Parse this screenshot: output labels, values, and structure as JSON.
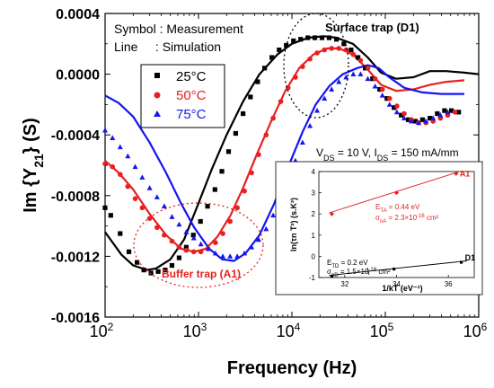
{
  "chart_data": [
    {
      "type": "scatter",
      "xlabel": "Frequency (Hz)",
      "ylabel": "Im {Y21} (S)",
      "x_scale": "log",
      "xlim": [
        100,
        1000000
      ],
      "ylim": [
        -0.0016,
        0.0004
      ],
      "x_ticks": [
        {
          "v": 100,
          "base": "10",
          "exp": "2"
        },
        {
          "v": 1000,
          "base": "10",
          "exp": "3"
        },
        {
          "v": 10000,
          "base": "10",
          "exp": "4"
        },
        {
          "v": 100000,
          "base": "10",
          "exp": "5"
        },
        {
          "v": 1000000,
          "base": "10",
          "exp": "6"
        }
      ],
      "y_ticks": [
        {
          "v": 0.0004,
          "label": "0.0004"
        },
        {
          "v": 0.0,
          "label": "0.0000"
        },
        {
          "v": -0.0004,
          "label": "-0.0004"
        },
        {
          "v": -0.0008,
          "label": "-0.0008"
        },
        {
          "v": -0.0012,
          "label": "-0.0012"
        },
        {
          "v": -0.0016,
          "label": "-0.0016"
        }
      ],
      "legend_text": {
        "line1": "Symbol : Measurement",
        "line2": "Line     : Simulation"
      },
      "series": [
        {
          "name": "25°C",
          "color": "#000000",
          "marker": "square",
          "measurement": [
            [
              100,
              -0.00088
            ],
            [
              115,
              -0.00093
            ],
            [
              145,
              -0.00105
            ],
            [
              180,
              -0.00117
            ],
            [
              220,
              -0.00124
            ],
            [
              260,
              -0.00129
            ],
            [
              310,
              -0.00131
            ],
            [
              370,
              -0.0013
            ],
            [
              440,
              -0.00129
            ],
            [
              520,
              -0.00126
            ],
            [
              620,
              -0.00121
            ],
            [
              740,
              -0.00114
            ],
            [
              880,
              -0.00106
            ],
            [
              1050,
              -0.00097
            ],
            [
              1250,
              -0.00087
            ],
            [
              1500,
              -0.00076
            ],
            [
              1780,
              -0.00064
            ],
            [
              2100,
              -0.00051
            ],
            [
              2500,
              -0.00039
            ],
            [
              3000,
              -0.00026
            ],
            [
              3600,
              -0.00015
            ],
            [
              4300,
              -5e-05
            ],
            [
              5100,
              4e-05
            ],
            [
              6100,
              0.00011
            ],
            [
              7300,
              0.00016
            ],
            [
              8700,
              0.00019
            ],
            [
              10400,
              0.00022
            ],
            [
              12400,
              0.00023
            ],
            [
              14800,
              0.00024
            ],
            [
              17600,
              0.00024
            ],
            [
              21000,
              0.00024
            ],
            [
              25000,
              0.00024
            ],
            [
              30000,
              0.00023
            ],
            [
              36000,
              0.0002
            ],
            [
              43000,
              0.00016
            ],
            [
              51000,
              0.00011
            ],
            [
              61000,
              4e-05
            ],
            [
              73000,
              -3e-05
            ],
            [
              87000,
              -0.0001
            ],
            [
              104000,
              -0.00016
            ],
            [
              124000,
              -0.00022
            ],
            [
              148000,
              -0.00027
            ],
            [
              176000,
              -0.0003
            ],
            [
              210000,
              -0.00031
            ],
            [
              250000,
              -0.0003
            ],
            [
              300000,
              -0.00029
            ],
            [
              360000,
              -0.00026
            ],
            [
              430000,
              -0.00024
            ],
            [
              510000,
              -0.00024
            ],
            [
              610000,
              -0.00025
            ]
          ],
          "simulation": [
            [
              100,
              -0.00104
            ],
            [
              150,
              -0.00119
            ],
            [
              200,
              -0.00126
            ],
            [
              280,
              -0.00129
            ],
            [
              350,
              -0.00128
            ],
            [
              500,
              -0.00122
            ],
            [
              700,
              -0.00109
            ],
            [
              1000,
              -0.00085
            ],
            [
              1400,
              -0.00062
            ],
            [
              2000,
              -0.0004
            ],
            [
              3000,
              -0.00018
            ],
            [
              4500,
              0.0
            ],
            [
              7000,
              0.00013
            ],
            [
              10000,
              0.0002
            ],
            [
              15000,
              0.00024
            ],
            [
              22000,
              0.00025
            ],
            [
              30000,
              0.00024
            ],
            [
              45000,
              0.0002
            ],
            [
              65000,
              0.00011
            ],
            [
              90000,
              1e-05
            ],
            [
              130000,
              -3e-05
            ],
            [
              200000,
              -2e-05
            ],
            [
              300000,
              2e-05
            ],
            [
              450000,
              2e-05
            ],
            [
              700000,
              1e-05
            ],
            [
              1000000,
              0.0
            ]
          ]
        },
        {
          "name": "50°C",
          "color": "#e8201f",
          "marker": "circle",
          "measurement": [
            [
              100,
              -0.00059
            ],
            [
              120,
              -0.00061
            ],
            [
              145,
              -0.00066
            ],
            [
              175,
              -0.00074
            ],
            [
              210,
              -0.00082
            ],
            [
              250,
              -0.00088
            ],
            [
              300,
              -0.00095
            ],
            [
              360,
              -0.00101
            ],
            [
              430,
              -0.00106
            ],
            [
              520,
              -0.0011
            ],
            [
              620,
              -0.00114
            ],
            [
              740,
              -0.00116
            ],
            [
              890,
              -0.00117
            ],
            [
              1060,
              -0.00117
            ],
            [
              1270,
              -0.00115
            ],
            [
              1520,
              -0.00111
            ],
            [
              1820,
              -0.00105
            ],
            [
              2180,
              -0.00097
            ],
            [
              2600,
              -0.00088
            ],
            [
              3100,
              -0.00077
            ],
            [
              3700,
              -0.00065
            ],
            [
              4400,
              -0.00053
            ],
            [
              5300,
              -0.0004
            ],
            [
              6300,
              -0.00029
            ],
            [
              7600,
              -0.00018
            ],
            [
              9100,
              -9e-05
            ],
            [
              10900,
              -2e-05
            ],
            [
              13000,
              5e-05
            ],
            [
              15600,
              0.0001
            ],
            [
              18600,
              0.00014
            ],
            [
              22300,
              0.00016
            ],
            [
              26600,
              0.00017
            ],
            [
              31800,
              0.00017
            ],
            [
              38000,
              0.00016
            ],
            [
              45400,
              0.00013
            ],
            [
              54300,
              9e-05
            ],
            [
              65000,
              4e-05
            ],
            [
              77700,
              -3e-05
            ],
            [
              93000,
              -0.0001
            ],
            [
              111000,
              -0.00016
            ],
            [
              133000,
              -0.00021
            ],
            [
              159000,
              -0.00026
            ],
            [
              190000,
              -0.0003
            ],
            [
              227000,
              -0.00032
            ],
            [
              272000,
              -0.00032
            ],
            [
              325000,
              -0.00031
            ],
            [
              389000,
              -0.00029
            ],
            [
              465000,
              -0.00027
            ],
            [
              556000,
              -0.00025
            ]
          ],
          "simulation": [
            [
              100,
              -0.00057
            ],
            [
              140,
              -0.00065
            ],
            [
              200,
              -0.00076
            ],
            [
              300,
              -0.00092
            ],
            [
              450,
              -0.00106
            ],
            [
              650,
              -0.00115
            ],
            [
              900,
              -0.00117
            ],
            [
              1200,
              -0.00115
            ],
            [
              1600,
              -0.00107
            ],
            [
              2200,
              -0.00093
            ],
            [
              3000,
              -0.00075
            ],
            [
              4200,
              -0.00053
            ],
            [
              6000,
              -0.00031
            ],
            [
              8500,
              -0.00011
            ],
            [
              12000,
              4e-05
            ],
            [
              17000,
              0.00013
            ],
            [
              24000,
              0.00017
            ],
            [
              32000,
              0.00017
            ],
            [
              45000,
              0.00013
            ],
            [
              65000,
              3e-05
            ],
            [
              90000,
              -7e-05
            ],
            [
              130000,
              -0.00011
            ],
            [
              200000,
              -0.0001
            ],
            [
              300000,
              -7e-05
            ],
            [
              450000,
              -5e-05
            ],
            [
              700000,
              -4e-05
            ]
          ]
        },
        {
          "name": "75°C",
          "color": "#1515f0",
          "marker": "triangle",
          "measurement": [
            [
              100,
              -0.00037
            ],
            [
              120,
              -0.00042
            ],
            [
              145,
              -0.00048
            ],
            [
              175,
              -0.00054
            ],
            [
              210,
              -0.00061
            ],
            [
              250,
              -0.00068
            ],
            [
              300,
              -0.00075
            ],
            [
              360,
              -0.00081
            ],
            [
              430,
              -0.00087
            ],
            [
              520,
              -0.00094
            ],
            [
              620,
              -0.00099
            ],
            [
              740,
              -0.00104
            ],
            [
              890,
              -0.00108
            ],
            [
              1060,
              -0.00112
            ],
            [
              1270,
              -0.00115
            ],
            [
              1520,
              -0.00118
            ],
            [
              1820,
              -0.0012
            ],
            [
              2180,
              -0.0012
            ],
            [
              2600,
              -0.0012
            ],
            [
              3100,
              -0.00118
            ],
            [
              3700,
              -0.00114
            ],
            [
              4400,
              -0.00109
            ],
            [
              5300,
              -0.00102
            ],
            [
              6300,
              -0.00093
            ],
            [
              7600,
              -0.00082
            ],
            [
              9100,
              -0.0007
            ],
            [
              10900,
              -0.00057
            ],
            [
              13000,
              -0.00045
            ],
            [
              15600,
              -0.00034
            ],
            [
              18600,
              -0.00024
            ],
            [
              22300,
              -0.00016
            ],
            [
              26600,
              -0.0001
            ],
            [
              31800,
              -5e-05
            ],
            [
              38000,
              -2e-05
            ],
            [
              45400,
              0.0
            ],
            [
              54300,
              0.0
            ],
            [
              65000,
              -3e-05
            ],
            [
              77700,
              -8e-05
            ],
            [
              93000,
              -0.00014
            ],
            [
              111000,
              -0.0002
            ],
            [
              133000,
              -0.00025
            ],
            [
              159000,
              -0.00029
            ],
            [
              190000,
              -0.00031
            ],
            [
              227000,
              -0.00032
            ],
            [
              272000,
              -0.00031
            ],
            [
              325000,
              -0.00029
            ],
            [
              389000,
              -0.00027
            ],
            [
              465000,
              -0.00025
            ]
          ],
          "simulation": [
            [
              100,
              -0.00014
            ],
            [
              140,
              -0.00019
            ],
            [
              200,
              -0.00028
            ],
            [
              300,
              -0.00045
            ],
            [
              450,
              -0.00065
            ],
            [
              650,
              -0.00085
            ],
            [
              900,
              -0.00101
            ],
            [
              1300,
              -0.00115
            ],
            [
              1800,
              -0.00122
            ],
            [
              2400,
              -0.00123
            ],
            [
              3200,
              -0.00118
            ],
            [
              4500,
              -0.00106
            ],
            [
              6500,
              -0.00085
            ],
            [
              9000,
              -0.00062
            ],
            [
              13000,
              -0.00038
            ],
            [
              18000,
              -0.0002
            ],
            [
              25000,
              -8e-05
            ],
            [
              35000,
              0.0
            ],
            [
              50000,
              4e-05
            ],
            [
              65000,
              6e-05
            ],
            [
              85000,
              4e-05
            ],
            [
              110000,
              -2e-05
            ],
            [
              160000,
              -9e-05
            ],
            [
              250000,
              -0.00012
            ],
            [
              400000,
              -0.00013
            ],
            [
              700000,
              -0.00013
            ]
          ]
        }
      ],
      "annotations": {
        "surface_trap": "Surface trap (D1)",
        "buffer_trap": "Buffer trap (A1)",
        "bias_prefix": "V",
        "bias_sub1": "DS",
        "bias_mid": " = 10 V, I",
        "bias_sub2": "DS",
        "bias_suffix": " = 150 mA/mm"
      }
    },
    {
      "type": "line",
      "xlabel": "1/kT (eV⁻¹)",
      "ylabel": "ln(τn T²) (s.K²)",
      "xlim": [
        31,
        37
      ],
      "ylim": [
        -1,
        4
      ],
      "x_ticks": [
        32,
        34,
        36
      ],
      "y_ticks": [
        -1,
        0,
        1,
        2,
        3,
        4
      ],
      "series": [
        {
          "name": "A1",
          "color": "#e8201f",
          "marker": "diamond",
          "x": [
            31.5,
            34.0,
            36.3
          ],
          "y": [
            2.0,
            3.0,
            3.9
          ]
        },
        {
          "name": "D1",
          "color": "#000000",
          "marker": "square",
          "x": [
            31.5,
            33.9,
            36.5
          ],
          "y": [
            -0.95,
            -0.6,
            -0.28
          ]
        }
      ],
      "annotations": {
        "ea_label": "E",
        "ea_sub": "TA",
        "ea_value": " = 0.44 eV",
        "sa_label": "σ",
        "sa_sub": "nA",
        "sa_value": " = 2.3×10",
        "sa_exp": "-16",
        "sa_unit": " cm²",
        "ed_label": "E",
        "ed_sub": "TD",
        "ed_value": " = 0.2 eV",
        "sd_label": "σ",
        "sd_sub": "nD",
        "sd_value": " = 1.5×10",
        "sd_exp": "-18",
        "sd_unit": " cm²"
      }
    }
  ]
}
